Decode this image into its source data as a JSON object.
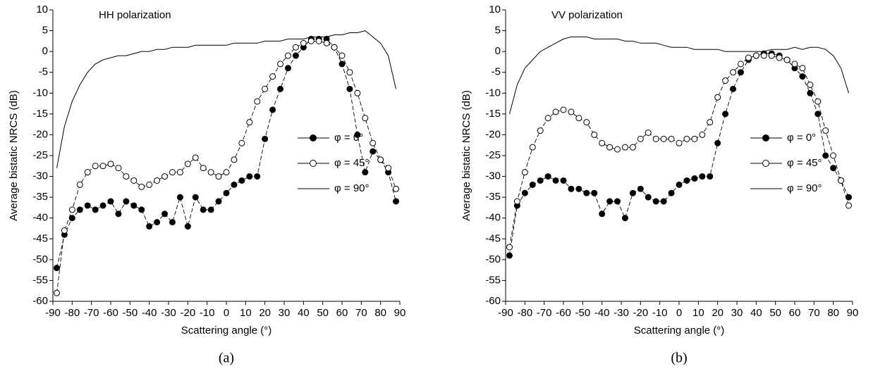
{
  "chart_data": [
    {
      "type": "line",
      "title": "HH polarization",
      "panel_label": "(a)",
      "x_label": "Scattering angle (°)",
      "y_label": "Average bistatic NRCS (dB)",
      "xlim": [
        -90,
        90
      ],
      "ylim": [
        -60,
        10
      ],
      "xticks": [
        -90,
        -80,
        -70,
        -60,
        -50,
        -40,
        -30,
        -20,
        -10,
        0,
        10,
        20,
        30,
        40,
        50,
        60,
        70,
        80,
        90
      ],
      "yticks": [
        -60,
        -55,
        -50,
        -45,
        -40,
        -35,
        -30,
        -25,
        -20,
        -15,
        -10,
        -5,
        0,
        5,
        10
      ],
      "legend": "right",
      "x": [
        -88,
        -84,
        -80,
        -76,
        -72,
        -68,
        -64,
        -60,
        -56,
        -52,
        -48,
        -44,
        -40,
        -36,
        -32,
        -28,
        -24,
        -20,
        -16,
        -12,
        -8,
        -4,
        0,
        4,
        8,
        12,
        16,
        20,
        24,
        28,
        32,
        36,
        40,
        44,
        48,
        52,
        56,
        60,
        64,
        68,
        72,
        76,
        80,
        84,
        88
      ],
      "series": [
        {
          "name": "φ = 0°",
          "color": "#000000",
          "marker": "filled",
          "linestyle": "dashed",
          "values": [
            -52,
            -44,
            -40,
            -38,
            -37,
            -38,
            -37,
            -36,
            -39,
            -36,
            -37,
            -38,
            -42,
            -41,
            -39,
            -41,
            -35,
            -42,
            -35,
            -38,
            -38,
            -36,
            -34,
            -32,
            -31,
            -30,
            -30,
            -21,
            -14,
            -9,
            -4,
            -1,
            1,
            3,
            3,
            3,
            1,
            -3,
            -9,
            -20,
            -29,
            -24,
            -26,
            -29,
            -36
          ]
        },
        {
          "name": "φ = 45°",
          "color": "#000000",
          "marker": "open",
          "linestyle": "dashed",
          "values": [
            -58,
            -43,
            -38,
            -32,
            -29,
            -27.5,
            -27.5,
            -27,
            -28,
            -30,
            -31,
            -32.5,
            -32,
            -31,
            -30,
            -29,
            -29,
            -27,
            -25.5,
            -28,
            -29,
            -30,
            -29,
            -26,
            -22,
            -17,
            -12,
            -9,
            -6,
            -3,
            -1,
            1,
            2,
            2.5,
            2.5,
            2,
            1,
            -1,
            -5,
            -10,
            -16,
            -22,
            -26,
            -28,
            -33
          ]
        },
        {
          "name": "φ = 90°",
          "color": "#000000",
          "marker": "none",
          "linestyle": "solid",
          "values": [
            -28,
            -18,
            -12,
            -8,
            -5,
            -3,
            -2,
            -1.5,
            -1,
            -1,
            -0.5,
            0,
            0,
            0.5,
            0.5,
            1,
            1,
            1,
            1.5,
            1.5,
            1.5,
            1.5,
            1.5,
            2,
            2,
            2,
            2,
            2.5,
            2.5,
            2.5,
            3,
            3,
            3,
            3.5,
            3.5,
            3.5,
            4,
            4,
            4.5,
            4.5,
            5,
            3.5,
            2,
            -1,
            -9
          ]
        }
      ]
    },
    {
      "type": "line",
      "title": "VV polarization",
      "panel_label": "(b)",
      "x_label": "Scattering angle (°)",
      "y_label": "Average bistatic NRCS (dB)",
      "xlim": [
        -90,
        90
      ],
      "ylim": [
        -60,
        10
      ],
      "xticks": [
        -90,
        -80,
        -70,
        -60,
        -50,
        -40,
        -30,
        -20,
        -10,
        0,
        10,
        20,
        30,
        40,
        50,
        60,
        70,
        80,
        90
      ],
      "yticks": [
        -60,
        -55,
        -50,
        -45,
        -40,
        -35,
        -30,
        -25,
        -20,
        -15,
        -10,
        -5,
        0,
        5,
        10
      ],
      "legend": "right",
      "x": [
        -88,
        -84,
        -80,
        -76,
        -72,
        -68,
        -64,
        -60,
        -56,
        -52,
        -48,
        -44,
        -40,
        -36,
        -32,
        -28,
        -24,
        -20,
        -16,
        -12,
        -8,
        -4,
        0,
        4,
        8,
        12,
        16,
        20,
        24,
        28,
        32,
        36,
        40,
        44,
        48,
        52,
        56,
        60,
        64,
        68,
        72,
        76,
        80,
        84,
        88
      ],
      "series": [
        {
          "name": "φ = 0°",
          "color": "#000000",
          "marker": "filled",
          "linestyle": "dashed",
          "values": [
            -49,
            -37,
            -34,
            -32,
            -31,
            -30,
            -31,
            -31,
            -33,
            -33,
            -34,
            -34,
            -39,
            -36,
            -36,
            -40,
            -34,
            -33,
            -35,
            -36,
            -36,
            -34,
            -32,
            -31,
            -30.5,
            -30,
            -30,
            -22,
            -15,
            -9,
            -5,
            -2,
            -1,
            -0.5,
            -0.5,
            -1,
            -2,
            -4,
            -6,
            -10,
            -15,
            -25,
            -28,
            -31,
            -35
          ]
        },
        {
          "name": "φ = 45°",
          "color": "#000000",
          "marker": "open",
          "linestyle": "dashed",
          "values": [
            -47,
            -36,
            -29,
            -23,
            -19,
            -16,
            -14.5,
            -14,
            -14.5,
            -16,
            -17,
            -20,
            -22,
            -23,
            -23.5,
            -23,
            -23,
            -21,
            -19.5,
            -21,
            -21,
            -21,
            -22,
            -21,
            -21,
            -20,
            -17,
            -11,
            -7,
            -5,
            -3,
            -1.5,
            -1,
            -1,
            -1,
            -1.5,
            -2,
            -3,
            -4,
            -8,
            -12,
            -19,
            -25,
            -31,
            -37
          ]
        },
        {
          "name": "φ = 90°",
          "color": "#000000",
          "marker": "none",
          "linestyle": "solid",
          "values": [
            -15,
            -8,
            -4,
            -2,
            0,
            1,
            2,
            3,
            3.5,
            3.5,
            3.5,
            3,
            3,
            3,
            3,
            2.5,
            2.5,
            2,
            2,
            2,
            1.5,
            1,
            1,
            1,
            0.5,
            0.5,
            0.5,
            0.5,
            0,
            0,
            0,
            0,
            0,
            0,
            0.5,
            0.5,
            0.5,
            1,
            0.5,
            1,
            1,
            0.5,
            -1,
            -4,
            -10
          ]
        }
      ]
    }
  ]
}
